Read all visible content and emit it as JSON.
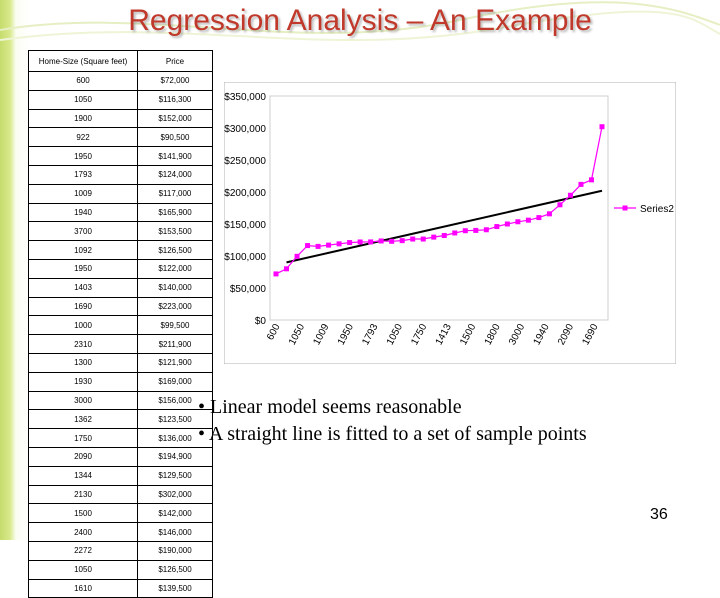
{
  "slide": {
    "title": "Regression Analysis – An Example",
    "page_number": "36",
    "bullets": [
      "• Linear model seems reasonable",
      "• A straight line is fitted to a set of sample points"
    ]
  },
  "table": {
    "headers": [
      "Home-Size (Square feet)",
      "Price"
    ],
    "rows": [
      [
        "600",
        "$72,000"
      ],
      [
        "1050",
        "$116,300"
      ],
      [
        "1900",
        "$152,000"
      ],
      [
        "922",
        "$90,500"
      ],
      [
        "1950",
        "$141,900"
      ],
      [
        "1793",
        "$124,000"
      ],
      [
        "1009",
        "$117,000"
      ],
      [
        "1940",
        "$165,900"
      ],
      [
        "3700",
        "$153,500"
      ],
      [
        "1092",
        "$126,500"
      ],
      [
        "1950",
        "$122,000"
      ],
      [
        "1403",
        "$140,000"
      ],
      [
        "1690",
        "$223,000"
      ],
      [
        "1000",
        "$99,500"
      ],
      [
        "2310",
        "$211,900"
      ],
      [
        "1300",
        "$121,900"
      ],
      [
        "1930",
        "$169,000"
      ],
      [
        "3000",
        "$156,000"
      ],
      [
        "1362",
        "$123,500"
      ],
      [
        "1750",
        "$136,000"
      ],
      [
        "2090",
        "$194,900"
      ],
      [
        "1344",
        "$129,500"
      ],
      [
        "2130",
        "$302,000"
      ],
      [
        "1500",
        "$142,000"
      ],
      [
        "2400",
        "$146,000"
      ],
      [
        "2272",
        "$190,000"
      ],
      [
        "1050",
        "$126,500"
      ],
      [
        "1610",
        "$139,500"
      ]
    ]
  },
  "chart_data": {
    "type": "line",
    "title": "",
    "ylim": [
      0,
      350000
    ],
    "y_ticks": [
      "$0",
      "$50,000",
      "$100,000",
      "$150,000",
      "$200,000",
      "$250,000",
      "$300,000",
      "$350,000"
    ],
    "x_tick_labels": [
      "600",
      "1050",
      "1009",
      "1950",
      "1793",
      "1050",
      "1750",
      "1413",
      "1500",
      "1800",
      "3000",
      "1940",
      "2090",
      "1690"
    ],
    "series": [
      {
        "name": "Series2",
        "color": "#ff00ff",
        "values": [
          72000,
          80000,
          99500,
          116300,
          115000,
          117000,
          119000,
          121000,
          121900,
          122000,
          123500,
          123000,
          124000,
          126500,
          126500,
          129500,
          132000,
          136000,
          139500,
          140000,
          141000,
          146000,
          150000,
          153500,
          156000,
          160000,
          165900,
          180000,
          194900,
          211900,
          219000,
          302000
        ]
      }
    ],
    "trendline": {
      "start": 90000,
      "end": 202000,
      "color": "#000000"
    },
    "legend_position": "right"
  }
}
